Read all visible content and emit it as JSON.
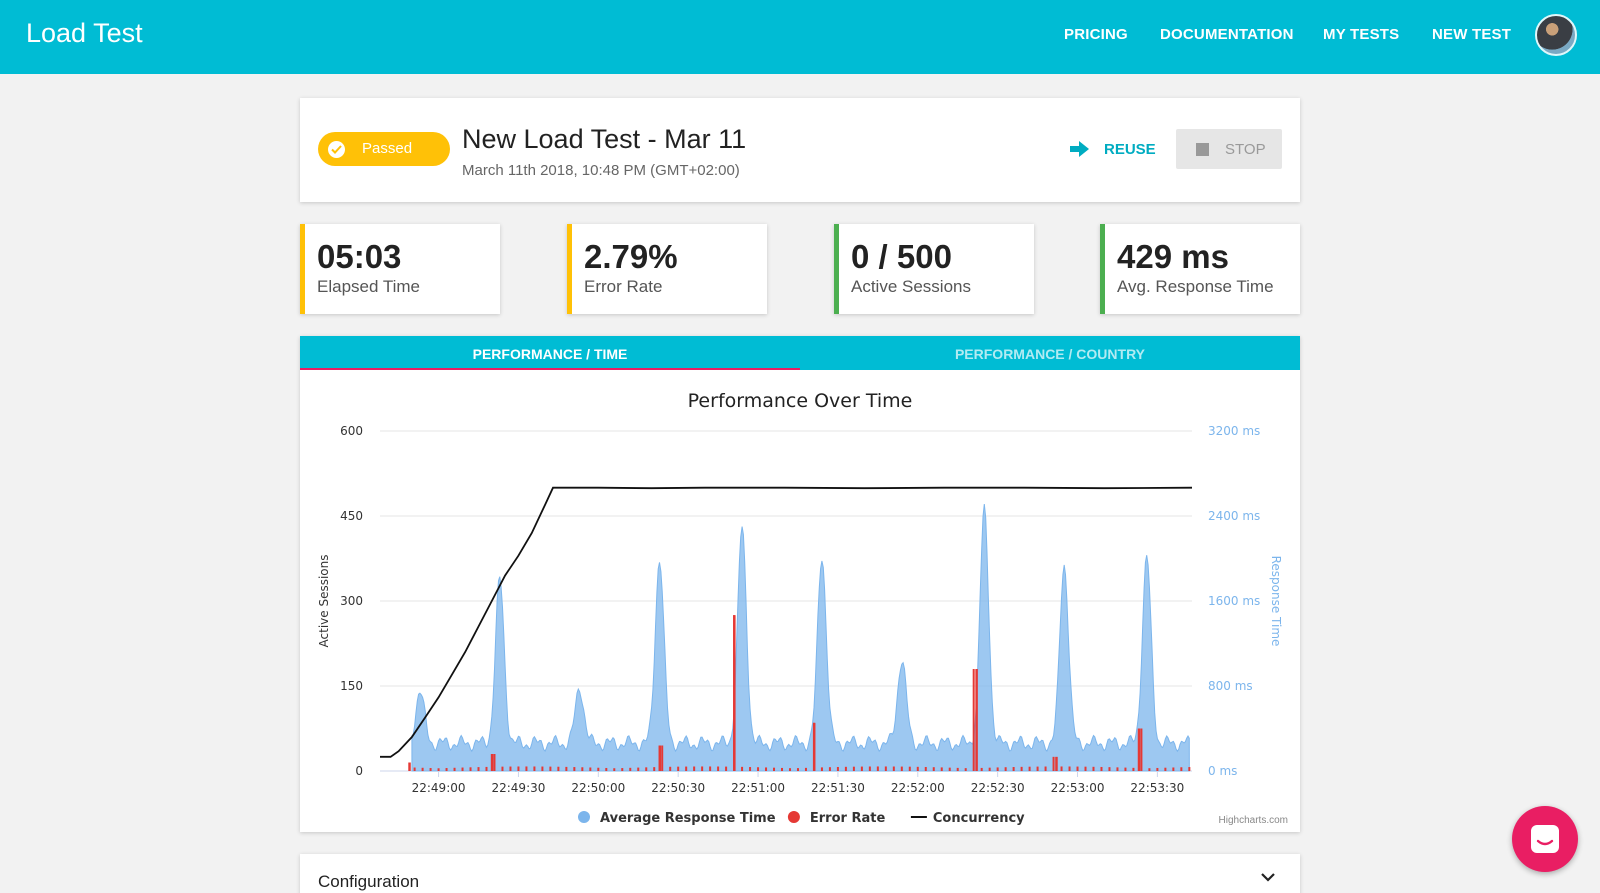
{
  "nav": {
    "brand": "Load Test",
    "links": [
      "PRICING",
      "DOCUMENTATION",
      "MY TESTS",
      "NEW TEST"
    ]
  },
  "test": {
    "status": "Passed",
    "title": "New Load Test - Mar 11",
    "date": "March 11th 2018, 10:48 PM (GMT+02:00)",
    "reuse_label": "REUSE",
    "stop_label": "STOP"
  },
  "stats": [
    {
      "value": "05:03",
      "label": "Elapsed Time",
      "color": "#ffc107"
    },
    {
      "value": "2.79%",
      "label": "Error Rate",
      "color": "#ffc107"
    },
    {
      "value": "0 / 500",
      "label": "Active Sessions",
      "color": "#4caf50"
    },
    {
      "value": "429 ms",
      "label": "Avg. Response Time",
      "color": "#4caf50"
    }
  ],
  "tabs": {
    "active": "PERFORMANCE / TIME",
    "inactive": "PERFORMANCE / COUNTRY"
  },
  "chart_data": {
    "type": "line",
    "title": "Performance Over Time",
    "left_axis_label": "Active Sessions",
    "right_axis_label": "Response Time",
    "left_ticks": [
      "600",
      "450",
      "300",
      "150",
      "0"
    ],
    "right_ticks": [
      "3200 ms",
      "2400 ms",
      "1600 ms",
      "800 ms",
      "0 ms"
    ],
    "ylim_left": [
      0,
      600
    ],
    "ylim_right": [
      0,
      3200
    ],
    "x_ticks": [
      "22:49:00",
      "22:49:30",
      "22:50:00",
      "22:50:30",
      "22:51:00",
      "22:51:30",
      "22:52:00",
      "22:52:30",
      "22:53:00",
      "22:53:30"
    ],
    "x_range_seconds": [
      -22,
      283
    ],
    "credit": "Highcharts.com",
    "legend": [
      {
        "name": "Average Response Time",
        "color": "#7cb5ec"
      },
      {
        "name": "Error Rate",
        "color": "#e53935"
      },
      {
        "name": "Concurrency",
        "color": "#111111"
      }
    ],
    "concurrency": {
      "t": [
        -22,
        -18,
        -15,
        -10,
        -5,
        0,
        5,
        10,
        15,
        20,
        25,
        30,
        35,
        40,
        43,
        50,
        60,
        80,
        100,
        130,
        160,
        190,
        220,
        250,
        283
      ],
      "v": [
        25,
        25,
        35,
        60,
        95,
        130,
        170,
        210,
        255,
        300,
        345,
        380,
        420,
        470,
        500,
        500,
        500,
        499,
        500,
        500,
        499,
        500,
        500,
        499,
        500
      ]
    },
    "response_time": {
      "baseline_ms": 260,
      "peaks": [
        {
          "t": -7,
          "ms": 750
        },
        {
          "t": 23,
          "ms": 1800
        },
        {
          "t": 53,
          "ms": 780
        },
        {
          "t": 83,
          "ms": 2000
        },
        {
          "t": 114,
          "ms": 2280
        },
        {
          "t": 144,
          "ms": 2030
        },
        {
          "t": 174,
          "ms": 1050
        },
        {
          "t": 205,
          "ms": 2450
        },
        {
          "t": 235,
          "ms": 1950
        },
        {
          "t": 266,
          "ms": 2010
        }
      ]
    },
    "error_rate": {
      "spikes": [
        {
          "t": -11,
          "v": 15
        },
        {
          "t": 20,
          "v": 30
        },
        {
          "t": 83,
          "v": 45
        },
        {
          "t": 111,
          "v": 275
        },
        {
          "t": 141,
          "v": 85
        },
        {
          "t": 202,
          "v": 180
        },
        {
          "t": 232,
          "v": 25
        },
        {
          "t": 263,
          "v": 75
        }
      ],
      "small_v": 8
    }
  },
  "config": {
    "title": "Configuration"
  }
}
